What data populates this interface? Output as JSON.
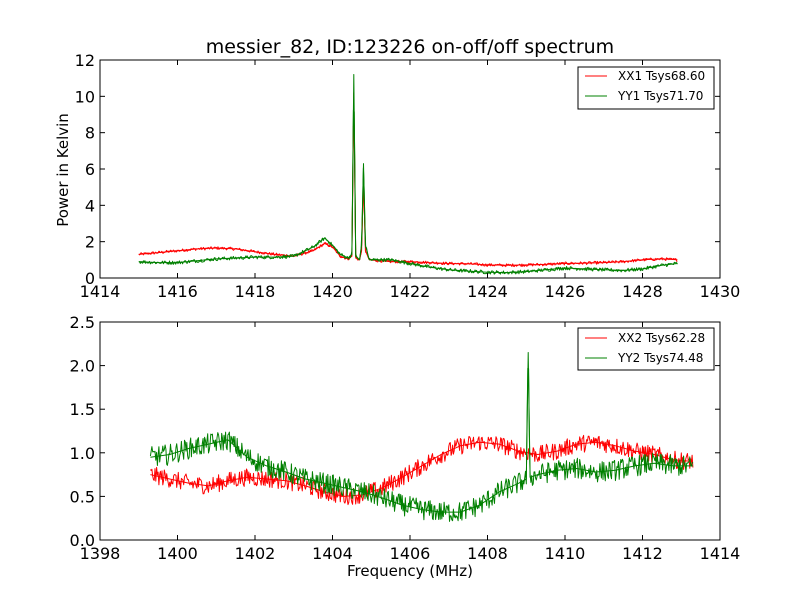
{
  "chart_data": [
    {
      "type": "line",
      "title": "messier_82, ID:123226 on-off/off spectrum",
      "xlabel": "",
      "ylabel": "Power in Kelvin",
      "xlim": [
        1414,
        1430
      ],
      "ylim": [
        0,
        12
      ],
      "xticks": [
        "1414",
        "1416",
        "1418",
        "1420",
        "1422",
        "1424",
        "1426",
        "1428",
        "1430"
      ],
      "yticks": [
        "0",
        "2",
        "4",
        "6",
        "8",
        "10",
        "12"
      ],
      "legend_position": "upper-right",
      "series": [
        {
          "name": "XX1 Tsys68.60",
          "color": "#ff0000",
          "x": [
            1415.0,
            1415.5,
            1416.0,
            1416.5,
            1417.0,
            1417.5,
            1418.0,
            1418.5,
            1419.0,
            1419.5,
            1419.8,
            1420.0,
            1420.2,
            1420.4,
            1420.5,
            1420.55,
            1420.6,
            1420.7,
            1420.75,
            1420.8,
            1420.85,
            1420.95,
            1421.2,
            1421.5,
            1422.0,
            1422.5,
            1423.0,
            1423.5,
            1424.0,
            1424.5,
            1425.0,
            1425.5,
            1426.0,
            1426.5,
            1427.0,
            1427.5,
            1428.0,
            1428.5,
            1428.9
          ],
          "values": [
            1.3,
            1.4,
            1.5,
            1.6,
            1.65,
            1.6,
            1.45,
            1.3,
            1.2,
            1.5,
            1.9,
            1.7,
            1.2,
            1.05,
            1.2,
            10.2,
            1.1,
            1.0,
            1.5,
            5.5,
            1.5,
            1.0,
            0.95,
            0.9,
            0.9,
            0.85,
            0.8,
            0.78,
            0.72,
            0.7,
            0.72,
            0.75,
            0.8,
            0.82,
            0.85,
            0.9,
            1.0,
            1.05,
            1.0
          ],
          "noise": 0.08
        },
        {
          "name": "YY1 Tsys71.70",
          "color": "#008000",
          "x": [
            1415.0,
            1415.5,
            1416.0,
            1416.5,
            1417.0,
            1417.5,
            1418.0,
            1418.5,
            1419.0,
            1419.5,
            1419.8,
            1420.0,
            1420.2,
            1420.4,
            1420.5,
            1420.55,
            1420.6,
            1420.7,
            1420.75,
            1420.8,
            1420.85,
            1420.95,
            1421.2,
            1421.5,
            1422.0,
            1422.5,
            1423.0,
            1423.5,
            1424.0,
            1424.5,
            1425.0,
            1425.5,
            1426.0,
            1426.5,
            1427.0,
            1427.5,
            1428.0,
            1428.5,
            1428.9
          ],
          "values": [
            0.9,
            0.85,
            0.85,
            0.95,
            1.05,
            1.1,
            1.15,
            1.15,
            1.2,
            1.7,
            2.2,
            1.8,
            1.3,
            1.1,
            1.3,
            11.2,
            1.2,
            1.0,
            1.8,
            6.3,
            1.8,
            1.0,
            1.0,
            1.0,
            0.8,
            0.6,
            0.45,
            0.38,
            0.32,
            0.3,
            0.35,
            0.45,
            0.55,
            0.5,
            0.45,
            0.42,
            0.5,
            0.7,
            0.8
          ],
          "noise": 0.1
        }
      ]
    },
    {
      "type": "line",
      "title": "",
      "xlabel": "Frequency (MHz)",
      "ylabel": "",
      "xlim": [
        1398,
        1414
      ],
      "ylim": [
        0,
        2.5
      ],
      "xticks": [
        "1398",
        "1400",
        "1402",
        "1404",
        "1406",
        "1408",
        "1410",
        "1412",
        "1414"
      ],
      "yticks": [
        "0.0",
        "0.5",
        "1.0",
        "1.5",
        "2.0",
        "2.5"
      ],
      "legend_position": "upper-right",
      "series": [
        {
          "name": "XX2 Tsys62.28",
          "color": "#ff0000",
          "x": [
            1399.3,
            1399.8,
            1400.3,
            1400.8,
            1401.3,
            1401.8,
            1402.3,
            1402.8,
            1403.3,
            1403.8,
            1404.3,
            1404.8,
            1405.3,
            1405.8,
            1406.3,
            1406.8,
            1407.3,
            1407.8,
            1408.3,
            1408.8,
            1409.3,
            1409.8,
            1410.3,
            1410.8,
            1411.3,
            1411.8,
            1412.3,
            1412.8,
            1413.3
          ],
          "values": [
            0.75,
            0.7,
            0.65,
            0.62,
            0.68,
            0.72,
            0.7,
            0.68,
            0.62,
            0.55,
            0.5,
            0.52,
            0.6,
            0.72,
            0.85,
            0.98,
            1.08,
            1.12,
            1.1,
            1.02,
            0.98,
            1.02,
            1.1,
            1.12,
            1.08,
            1.02,
            0.98,
            0.92,
            0.9
          ],
          "noise": 0.1
        },
        {
          "name": "YY2 Tsys74.48",
          "color": "#008000",
          "x": [
            1399.3,
            1399.8,
            1400.3,
            1400.8,
            1401.3,
            1401.8,
            1402.3,
            1402.8,
            1403.3,
            1403.8,
            1404.3,
            1404.8,
            1405.3,
            1405.8,
            1406.3,
            1406.8,
            1407.3,
            1407.8,
            1408.3,
            1408.8,
            1409.0,
            1409.05,
            1409.1,
            1409.3,
            1409.8,
            1410.3,
            1410.8,
            1411.3,
            1411.8,
            1412.3,
            1412.8,
            1413.3
          ],
          "values": [
            0.95,
            0.98,
            1.05,
            1.1,
            1.15,
            0.95,
            0.85,
            0.78,
            0.7,
            0.65,
            0.6,
            0.55,
            0.48,
            0.4,
            0.35,
            0.32,
            0.32,
            0.4,
            0.55,
            0.65,
            0.7,
            2.15,
            0.72,
            0.75,
            0.8,
            0.82,
            0.78,
            0.8,
            0.85,
            0.88,
            0.85,
            0.85
          ],
          "noise": 0.12
        }
      ]
    }
  ]
}
